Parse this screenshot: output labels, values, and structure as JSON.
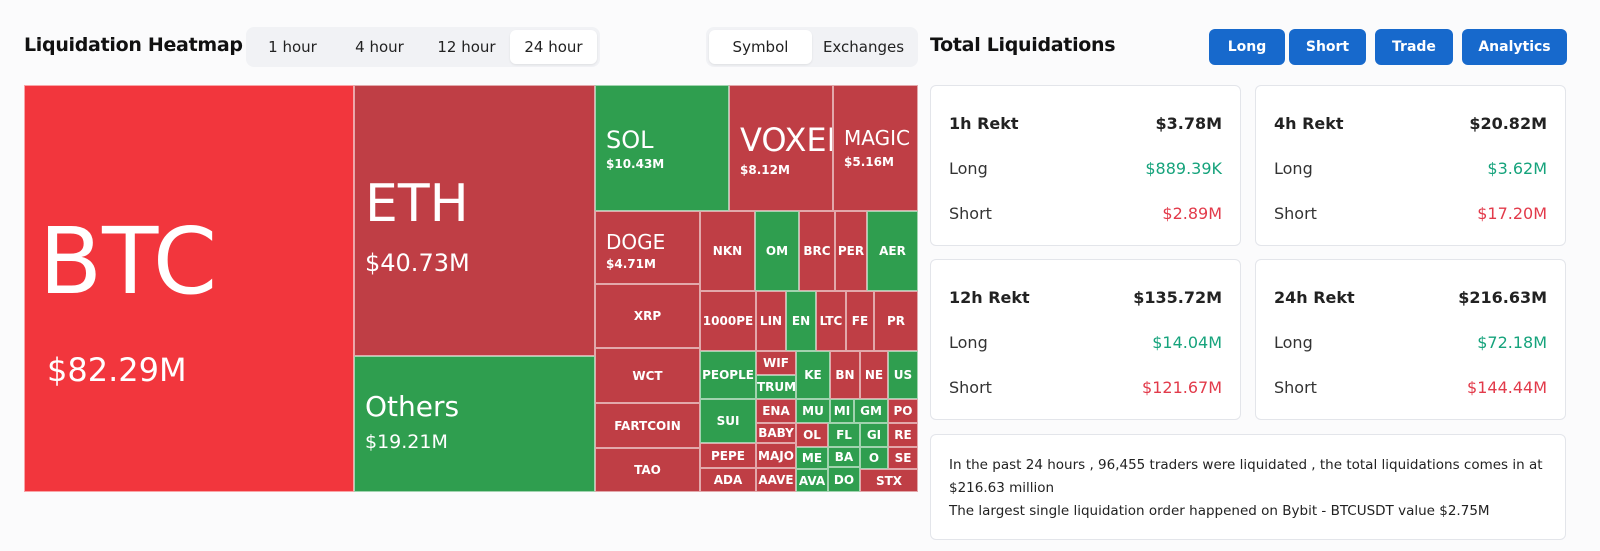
{
  "heatmap": {
    "title": "Liquidation Heatmap",
    "timeframes": [
      "1 hour",
      "4 hour",
      "12 hour",
      "24 hour"
    ],
    "active_timeframe": 3,
    "views": [
      "Symbol",
      "Exchanges"
    ],
    "active_view": 0,
    "colors": {
      "long": "#2f9e4f",
      "short_large": "#f2363d",
      "short": "#bf3e45"
    },
    "cells": [
      {
        "symbol": "BTC",
        "value": "$82.29M",
        "side": "short_large"
      },
      {
        "symbol": "ETH",
        "value": "$40.73M",
        "side": "short"
      },
      {
        "symbol": "Others",
        "value": "$19.21M",
        "side": "long"
      },
      {
        "symbol": "SOL",
        "value": "$10.43M",
        "side": "long"
      },
      {
        "symbol": "VOXEL",
        "value": "$8.12M",
        "side": "short"
      },
      {
        "symbol": "MAGIC",
        "value": "$5.16M",
        "side": "short"
      },
      {
        "symbol": "DOGE",
        "value": "$4.71M",
        "side": "short"
      },
      {
        "symbol": "XRP",
        "side": "short"
      },
      {
        "symbol": "WCT",
        "side": "short"
      },
      {
        "symbol": "FARTCOIN",
        "side": "short"
      },
      {
        "symbol": "TAO",
        "side": "short"
      },
      {
        "symbol": "NKN",
        "side": "short"
      },
      {
        "symbol": "OM",
        "side": "long"
      },
      {
        "symbol": "BRC",
        "side": "short"
      },
      {
        "symbol": "PER",
        "side": "short"
      },
      {
        "symbol": "AER",
        "side": "long"
      },
      {
        "symbol": "1000PE",
        "side": "short"
      },
      {
        "symbol": "LIN",
        "side": "short"
      },
      {
        "symbol": "EN",
        "side": "long"
      },
      {
        "symbol": "LTC",
        "side": "short"
      },
      {
        "symbol": "FE",
        "side": "short"
      },
      {
        "symbol": "PR",
        "side": "short"
      },
      {
        "symbol": "PEOPLE",
        "side": "long"
      },
      {
        "symbol": "WIF",
        "side": "short"
      },
      {
        "symbol": "KE",
        "side": "long"
      },
      {
        "symbol": "BN",
        "side": "short"
      },
      {
        "symbol": "NE",
        "side": "short"
      },
      {
        "symbol": "US",
        "side": "long"
      },
      {
        "symbol": "TRUM",
        "side": "long"
      },
      {
        "symbol": "SUI",
        "side": "long"
      },
      {
        "symbol": "ENA",
        "side": "short"
      },
      {
        "symbol": "MU",
        "side": "long"
      },
      {
        "symbol": "MI",
        "side": "long"
      },
      {
        "symbol": "GM",
        "side": "long"
      },
      {
        "symbol": "PO",
        "side": "short"
      },
      {
        "symbol": "BABY",
        "side": "short"
      },
      {
        "symbol": "OL",
        "side": "short"
      },
      {
        "symbol": "FL",
        "side": "long"
      },
      {
        "symbol": "GI",
        "side": "long"
      },
      {
        "symbol": "RE",
        "side": "short"
      },
      {
        "symbol": "PEPE",
        "side": "short"
      },
      {
        "symbol": "MAJO",
        "side": "short"
      },
      {
        "symbol": "ME",
        "side": "long"
      },
      {
        "symbol": "BA",
        "side": "long"
      },
      {
        "symbol": "O",
        "side": "long"
      },
      {
        "symbol": "SE",
        "side": "short"
      },
      {
        "symbol": "ADA",
        "side": "short"
      },
      {
        "symbol": "AAVE",
        "side": "short"
      },
      {
        "symbol": "AVA",
        "side": "long"
      },
      {
        "symbol": "DO",
        "side": "long"
      },
      {
        "symbol": "STX",
        "side": "short"
      }
    ]
  },
  "liquidations": {
    "title": "Total Liquidations",
    "buttons": [
      "Long",
      "Short",
      "Trade",
      "Analytics"
    ],
    "cards": [
      {
        "label": "1h Rekt",
        "total": "$3.78M",
        "long_label": "Long",
        "long": "$889.39K",
        "short_label": "Short",
        "short": "$2.89M"
      },
      {
        "label": "4h Rekt",
        "total": "$20.82M",
        "long_label": "Long",
        "long": "$3.62M",
        "short_label": "Short",
        "short": "$17.20M"
      },
      {
        "label": "12h Rekt",
        "total": "$135.72M",
        "long_label": "Long",
        "long": "$14.04M",
        "short_label": "Short",
        "short": "$121.67M"
      },
      {
        "label": "24h Rekt",
        "total": "$216.63M",
        "long_label": "Long",
        "long": "$72.18M",
        "short_label": "Short",
        "short": "$144.44M"
      }
    ],
    "summary_line1": "In the past 24 hours , 96,455 traders were liquidated , the total liquidations comes in at $216.63 million",
    "summary_line2": "The largest single liquidation order happened on Bybit - BTCUSDT value $2.75M"
  }
}
